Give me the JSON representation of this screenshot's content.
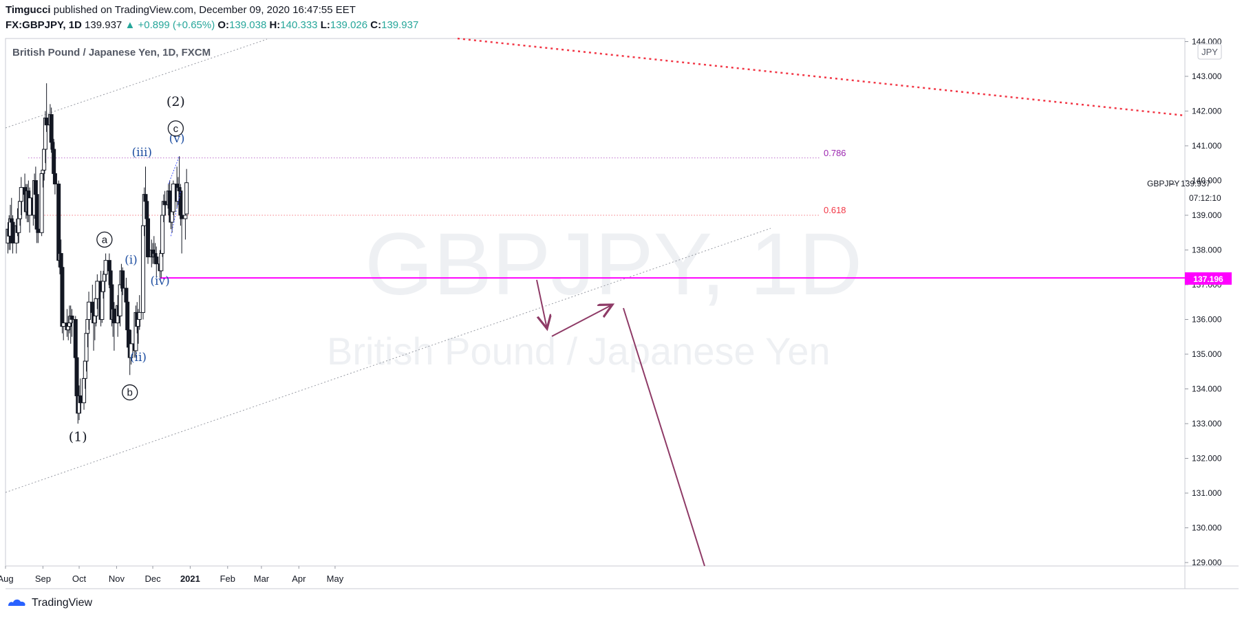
{
  "header": {
    "author": "Timgucci",
    "published": "published on TradingView.com, December 09, 2020 16:47:55 EET",
    "symbol": "FX:GBPJPY, 1D",
    "last": "139.937",
    "change": "▲ +0.899 (+0.65%)",
    "o_label": "O:",
    "o_value": "139.038",
    "h_label": "H:",
    "h_value": "140.333",
    "l_label": "L:",
    "l_value": "139.026",
    "c_label": "C:",
    "c_value": "139.937"
  },
  "chart_title": "British Pound / Japanese Yen, 1D, FXCM",
  "currency_badge": "JPY",
  "watermark": {
    "line1": "GBPJPY, 1D",
    "line2": "British Pound / Japanese Yen"
  },
  "price_tag": {
    "symbol": "GBPJPY",
    "price": "139.937",
    "countdown": "07:12:10"
  },
  "level_tag": "137.196",
  "fib_labels": {
    "f786": "0.786",
    "f618": "0.618"
  },
  "footer": {
    "brand": "TradingView"
  },
  "colors": {
    "up": "#26a69a",
    "magenta": "#ff00ff",
    "red_dotted": "#f23645",
    "arrow": "#8e3a66",
    "wave_blue": "#1e4ea1",
    "fib786": "#9c27b0",
    "fib618": "#f23645"
  },
  "chart_data": {
    "type": "candlestick",
    "title": "British Pound / Japanese Yen, 1D, FXCM",
    "y_ticks": [
      "144.000",
      "143.000",
      "142.000",
      "141.000",
      "140.000",
      "139.000",
      "138.000",
      "137.000",
      "136.000",
      "135.000",
      "134.000",
      "133.000",
      "132.000",
      "131.000",
      "130.000",
      "129.000"
    ],
    "x_ticks": [
      "Aug",
      "Sep",
      "Oct",
      "Nov",
      "Dec",
      "2021",
      "Feb",
      "Mar",
      "Apr",
      "May"
    ],
    "ylim": [
      128.9,
      144.1
    ],
    "xlim": [
      "2020-08-01",
      "2021-06-20"
    ],
    "candles": [
      {
        "date": "2020-08-03",
        "o": 138.2,
        "h": 138.8,
        "l": 137.9,
        "c": 138.6
      },
      {
        "date": "2020-08-04",
        "o": 138.6,
        "h": 139.0,
        "l": 138.0,
        "c": 138.4
      },
      {
        "date": "2020-08-05",
        "o": 138.4,
        "h": 139.3,
        "l": 138.0,
        "c": 138.9
      },
      {
        "date": "2020-08-06",
        "o": 138.9,
        "h": 139.5,
        "l": 138.5,
        "c": 138.8
      },
      {
        "date": "2020-08-07",
        "o": 138.8,
        "h": 139.0,
        "l": 137.9,
        "c": 138.2
      },
      {
        "date": "2020-08-10",
        "o": 138.2,
        "h": 138.9,
        "l": 137.9,
        "c": 138.7
      },
      {
        "date": "2020-08-11",
        "o": 138.7,
        "h": 139.2,
        "l": 138.4,
        "c": 138.5
      },
      {
        "date": "2020-08-12",
        "o": 138.5,
        "h": 139.0,
        "l": 138.2,
        "c": 138.9
      },
      {
        "date": "2020-08-13",
        "o": 138.9,
        "h": 139.7,
        "l": 138.7,
        "c": 139.4
      },
      {
        "date": "2020-08-14",
        "o": 139.4,
        "h": 140.1,
        "l": 139.0,
        "c": 139.8
      },
      {
        "date": "2020-08-17",
        "o": 139.8,
        "h": 140.2,
        "l": 139.3,
        "c": 139.6
      },
      {
        "date": "2020-08-18",
        "o": 139.6,
        "h": 139.9,
        "l": 138.9,
        "c": 139.1
      },
      {
        "date": "2020-08-19",
        "o": 139.1,
        "h": 139.9,
        "l": 138.8,
        "c": 139.7
      },
      {
        "date": "2020-08-20",
        "o": 139.7,
        "h": 140.0,
        "l": 138.8,
        "c": 139.0
      },
      {
        "date": "2020-08-21",
        "o": 139.0,
        "h": 139.8,
        "l": 138.5,
        "c": 139.5
      },
      {
        "date": "2020-08-24",
        "o": 139.5,
        "h": 139.8,
        "l": 138.7,
        "c": 139.0
      },
      {
        "date": "2020-08-25",
        "o": 139.0,
        "h": 140.2,
        "l": 138.9,
        "c": 140.0
      },
      {
        "date": "2020-08-26",
        "o": 140.0,
        "h": 140.4,
        "l": 139.5,
        "c": 139.6
      },
      {
        "date": "2020-08-27",
        "o": 139.6,
        "h": 139.8,
        "l": 138.2,
        "c": 138.6
      },
      {
        "date": "2020-08-28",
        "o": 138.6,
        "h": 138.9,
        "l": 138.2,
        "c": 138.5
      },
      {
        "date": "2020-08-31",
        "o": 138.5,
        "h": 140.3,
        "l": 138.4,
        "c": 140.2
      },
      {
        "date": "2020-09-01",
        "o": 140.2,
        "h": 140.5,
        "l": 139.8,
        "c": 140.3
      },
      {
        "date": "2020-09-02",
        "o": 140.3,
        "h": 141.2,
        "l": 140.0,
        "c": 140.9
      },
      {
        "date": "2020-09-03",
        "o": 140.9,
        "h": 142.0,
        "l": 140.5,
        "c": 141.8
      },
      {
        "date": "2020-09-04",
        "o": 141.8,
        "h": 142.8,
        "l": 141.4,
        "c": 141.6
      },
      {
        "date": "2020-09-07",
        "o": 141.6,
        "h": 142.2,
        "l": 141.3,
        "c": 141.9
      },
      {
        "date": "2020-09-08",
        "o": 141.9,
        "h": 142.1,
        "l": 140.8,
        "c": 141.1
      },
      {
        "date": "2020-09-09",
        "o": 141.1,
        "h": 141.4,
        "l": 140.5,
        "c": 140.9
      },
      {
        "date": "2020-09-10",
        "o": 140.9,
        "h": 141.2,
        "l": 139.9,
        "c": 140.2
      },
      {
        "date": "2020-09-11",
        "o": 140.2,
        "h": 140.4,
        "l": 139.6,
        "c": 139.9
      },
      {
        "date": "2020-09-14",
        "o": 139.9,
        "h": 140.0,
        "l": 137.5,
        "c": 137.7
      },
      {
        "date": "2020-09-15",
        "o": 137.7,
        "h": 138.3,
        "l": 137.3,
        "c": 137.9
      },
      {
        "date": "2020-09-16",
        "o": 137.9,
        "h": 138.3,
        "l": 137.2,
        "c": 137.5
      },
      {
        "date": "2020-09-17",
        "o": 137.5,
        "h": 137.6,
        "l": 135.6,
        "c": 135.8
      },
      {
        "date": "2020-09-18",
        "o": 135.8,
        "h": 136.2,
        "l": 135.4,
        "c": 135.9
      },
      {
        "date": "2020-09-21",
        "o": 135.9,
        "h": 136.3,
        "l": 135.5,
        "c": 135.7
      },
      {
        "date": "2020-09-22",
        "o": 135.7,
        "h": 136.1,
        "l": 135.4,
        "c": 135.8
      },
      {
        "date": "2020-09-23",
        "o": 135.8,
        "h": 136.4,
        "l": 135.6,
        "c": 135.9
      },
      {
        "date": "2020-09-24",
        "o": 135.9,
        "h": 136.4,
        "l": 135.3,
        "c": 136.1
      },
      {
        "date": "2020-09-25",
        "o": 136.1,
        "h": 136.3,
        "l": 135.5,
        "c": 136.0
      },
      {
        "date": "2020-09-28",
        "o": 136.0,
        "h": 136.1,
        "l": 134.7,
        "c": 134.9
      },
      {
        "date": "2020-09-29",
        "o": 134.9,
        "h": 135.0,
        "l": 133.5,
        "c": 133.8
      },
      {
        "date": "2020-09-30",
        "o": 133.8,
        "h": 134.2,
        "l": 133.0,
        "c": 133.3
      },
      {
        "date": "2020-10-01",
        "o": 133.3,
        "h": 134.1,
        "l": 133.1,
        "c": 133.8
      },
      {
        "date": "2020-10-02",
        "o": 133.8,
        "h": 134.3,
        "l": 133.3,
        "c": 133.6
      },
      {
        "date": "2020-10-05",
        "o": 133.6,
        "h": 134.6,
        "l": 133.4,
        "c": 134.3
      },
      {
        "date": "2020-10-06",
        "o": 134.3,
        "h": 135.0,
        "l": 134.0,
        "c": 134.8
      },
      {
        "date": "2020-10-07",
        "o": 134.8,
        "h": 135.9,
        "l": 134.5,
        "c": 135.6
      },
      {
        "date": "2020-10-08",
        "o": 135.6,
        "h": 136.1,
        "l": 135.2,
        "c": 136.0
      },
      {
        "date": "2020-10-09",
        "o": 136.0,
        "h": 136.8,
        "l": 135.7,
        "c": 136.5
      },
      {
        "date": "2020-10-12",
        "o": 136.5,
        "h": 137.0,
        "l": 136.0,
        "c": 136.2
      },
      {
        "date": "2020-10-13",
        "o": 136.2,
        "h": 136.5,
        "l": 135.1,
        "c": 135.9
      },
      {
        "date": "2020-10-14",
        "o": 135.9,
        "h": 136.5,
        "l": 135.4,
        "c": 136.1
      },
      {
        "date": "2020-10-15",
        "o": 136.1,
        "h": 136.8,
        "l": 135.8,
        "c": 136.6
      },
      {
        "date": "2020-10-16",
        "o": 136.6,
        "h": 137.3,
        "l": 136.3,
        "c": 137.1
      },
      {
        "date": "2020-10-19",
        "o": 137.1,
        "h": 137.4,
        "l": 135.8,
        "c": 136.0
      },
      {
        "date": "2020-10-20",
        "o": 136.0,
        "h": 136.9,
        "l": 135.9,
        "c": 136.8
      },
      {
        "date": "2020-10-21",
        "o": 136.8,
        "h": 137.4,
        "l": 136.6,
        "c": 137.1
      },
      {
        "date": "2020-10-22",
        "o": 137.1,
        "h": 137.6,
        "l": 136.8,
        "c": 137.3
      },
      {
        "date": "2020-10-23",
        "o": 137.3,
        "h": 137.9,
        "l": 137.1,
        "c": 137.7
      },
      {
        "date": "2020-10-26",
        "o": 137.7,
        "h": 137.9,
        "l": 136.9,
        "c": 137.4
      },
      {
        "date": "2020-10-27",
        "o": 137.4,
        "h": 137.6,
        "l": 136.9,
        "c": 137.0
      },
      {
        "date": "2020-10-28",
        "o": 137.0,
        "h": 137.2,
        "l": 135.8,
        "c": 136.0
      },
      {
        "date": "2020-10-29",
        "o": 136.0,
        "h": 136.4,
        "l": 135.5,
        "c": 136.3
      },
      {
        "date": "2020-10-30",
        "o": 136.3,
        "h": 136.5,
        "l": 135.1,
        "c": 135.9
      },
      {
        "date": "2020-11-02",
        "o": 135.9,
        "h": 136.7,
        "l": 135.5,
        "c": 136.4
      },
      {
        "date": "2020-11-03",
        "o": 136.4,
        "h": 136.7,
        "l": 135.9,
        "c": 136.1
      },
      {
        "date": "2020-11-04",
        "o": 136.1,
        "h": 137.3,
        "l": 135.8,
        "c": 137.0
      },
      {
        "date": "2020-11-05",
        "o": 137.0,
        "h": 137.6,
        "l": 136.8,
        "c": 137.4
      },
      {
        "date": "2020-11-06",
        "o": 137.4,
        "h": 137.5,
        "l": 136.7,
        "c": 136.9
      },
      {
        "date": "2020-11-09",
        "o": 136.9,
        "h": 137.2,
        "l": 136.1,
        "c": 136.5
      },
      {
        "date": "2020-11-10",
        "o": 136.5,
        "h": 136.8,
        "l": 135.5,
        "c": 135.7
      },
      {
        "date": "2020-11-11",
        "o": 135.7,
        "h": 136.1,
        "l": 134.9,
        "c": 135.2
      },
      {
        "date": "2020-11-12",
        "o": 135.2,
        "h": 135.6,
        "l": 134.4,
        "c": 134.9
      },
      {
        "date": "2020-11-13",
        "o": 134.9,
        "h": 135.7,
        "l": 134.7,
        "c": 135.3
      },
      {
        "date": "2020-11-16",
        "o": 135.3,
        "h": 135.6,
        "l": 134.9,
        "c": 135.1
      },
      {
        "date": "2020-11-17",
        "o": 135.1,
        "h": 136.4,
        "l": 134.9,
        "c": 136.2
      },
      {
        "date": "2020-11-18",
        "o": 136.2,
        "h": 136.5,
        "l": 135.6,
        "c": 135.8
      },
      {
        "date": "2020-11-19",
        "o": 135.8,
        "h": 136.3,
        "l": 135.3,
        "c": 136.0
      },
      {
        "date": "2020-11-20",
        "o": 136.0,
        "h": 136.7,
        "l": 135.7,
        "c": 136.2
      },
      {
        "date": "2020-11-23",
        "o": 136.2,
        "h": 139.0,
        "l": 136.0,
        "c": 138.7
      },
      {
        "date": "2020-11-24",
        "o": 138.7,
        "h": 139.8,
        "l": 138.4,
        "c": 139.6
      },
      {
        "date": "2020-11-25",
        "o": 139.6,
        "h": 140.4,
        "l": 139.0,
        "c": 139.4
      },
      {
        "date": "2020-11-26",
        "o": 139.4,
        "h": 139.6,
        "l": 138.6,
        "c": 138.9
      },
      {
        "date": "2020-11-27",
        "o": 138.9,
        "h": 139.1,
        "l": 137.6,
        "c": 137.8
      },
      {
        "date": "2020-11-30",
        "o": 137.8,
        "h": 138.3,
        "l": 137.5,
        "c": 138.0
      },
      {
        "date": "2020-12-01",
        "o": 138.0,
        "h": 138.2,
        "l": 137.6,
        "c": 137.8
      },
      {
        "date": "2020-12-02",
        "o": 137.8,
        "h": 138.4,
        "l": 137.6,
        "c": 137.9
      },
      {
        "date": "2020-12-03",
        "o": 137.9,
        "h": 138.2,
        "l": 137.6,
        "c": 137.8
      },
      {
        "date": "2020-12-04",
        "o": 137.8,
        "h": 138.1,
        "l": 137.2,
        "c": 137.6
      },
      {
        "date": "2020-12-07",
        "o": 137.6,
        "h": 138.0,
        "l": 137.2,
        "c": 137.4
      },
      {
        "date": "2020-12-08",
        "o": 137.4,
        "h": 138.1,
        "l": 137.2,
        "c": 137.9
      },
      {
        "date": "2020-12-09",
        "o": 137.9,
        "h": 139.2,
        "l": 137.8,
        "c": 139.0
      },
      {
        "date": "2020-12-10",
        "o": 139.0,
        "h": 139.6,
        "l": 138.8,
        "c": 139.4
      },
      {
        "date": "2020-12-11",
        "o": 139.4,
        "h": 139.7,
        "l": 139.0,
        "c": 139.3
      },
      {
        "date": "2020-12-14",
        "o": 139.3,
        "h": 139.9,
        "l": 139.0,
        "c": 139.7
      },
      {
        "date": "2020-12-15",
        "o": 139.7,
        "h": 140.0,
        "l": 139.1,
        "c": 139.2
      },
      {
        "date": "2020-12-16",
        "o": 139.2,
        "h": 139.5,
        "l": 138.6,
        "c": 138.8
      },
      {
        "date": "2020-12-17",
        "o": 138.8,
        "h": 139.3,
        "l": 138.5,
        "c": 139.1
      },
      {
        "date": "2020-12-18",
        "o": 139.1,
        "h": 140.0,
        "l": 139.0,
        "c": 139.9
      },
      {
        "date": "2020-12-21",
        "o": 139.9,
        "h": 140.4,
        "l": 139.2,
        "c": 139.4
      },
      {
        "date": "2020-12-22",
        "o": 139.4,
        "h": 140.1,
        "l": 139.3,
        "c": 139.8
      },
      {
        "date": "2020-12-23",
        "o": 139.8,
        "h": 140.7,
        "l": 139.5,
        "c": 139.7
      },
      {
        "date": "2020-12-24",
        "o": 139.7,
        "h": 139.9,
        "l": 138.7,
        "c": 139.0
      },
      {
        "date": "2020-12-25",
        "o": 139.0,
        "h": 139.3,
        "l": 137.9,
        "c": 138.9
      },
      {
        "date": "2020-12-28",
        "o": 138.9,
        "h": 139.2,
        "l": 138.3,
        "c": 139.0
      },
      {
        "date": "2020-12-29",
        "o": 139.038,
        "h": 140.333,
        "l": 139.026,
        "c": 139.937
      }
    ],
    "horizontal_levels": [
      {
        "name": "0.786",
        "price": 140.65
      },
      {
        "name": "0.618",
        "price": 139.0
      },
      {
        "name": "137.196",
        "price": 137.196
      }
    ],
    "annotations": [
      {
        "text": "(1)",
        "date": "2020-09-30",
        "price": 132.5
      },
      {
        "text": "a",
        "date": "2020-10-22",
        "price": 138.3
      },
      {
        "text": "b",
        "date": "2020-11-12",
        "price": 133.9
      },
      {
        "text": "(i)",
        "date": "2020-11-13",
        "price": 137.6
      },
      {
        "text": "(ii)",
        "date": "2020-11-19",
        "price": 134.8
      },
      {
        "text": "(iii)",
        "date": "2020-11-22",
        "price": 140.7
      },
      {
        "text": "(iv)",
        "date": "2020-12-07",
        "price": 137.0
      },
      {
        "text": "(v)",
        "date": "2020-12-21",
        "price": 141.1
      },
      {
        "text": "c",
        "date": "2020-12-20",
        "price": 141.5
      },
      {
        "text": "(2)",
        "date": "2020-12-20",
        "price": 142.15
      }
    ]
  }
}
